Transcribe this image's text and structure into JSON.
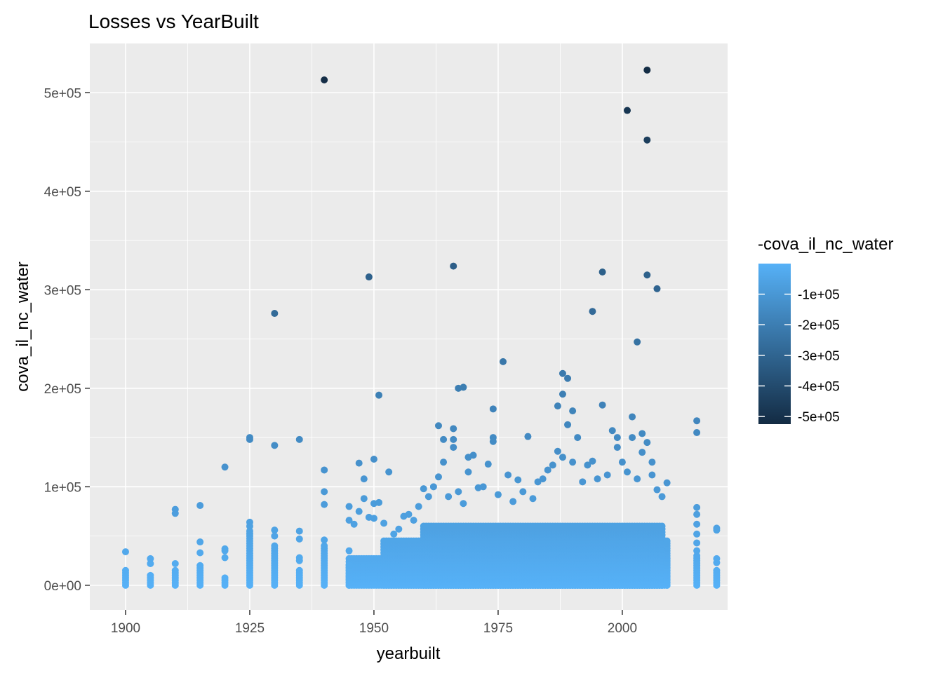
{
  "chart_data": {
    "type": "scatter",
    "title": "Losses vs YearBuilt",
    "xlabel": "yearbuilt",
    "ylabel": "cova_il_nc_water",
    "xlim": [
      1892.8,
      2021.2
    ],
    "ylim": [
      -25000,
      550000
    ],
    "xticks": [
      1900,
      1925,
      1950,
      1975,
      2000
    ],
    "xtick_labels": [
      "1900",
      "1925",
      "1950",
      "1975",
      "2000"
    ],
    "yticks": [
      0,
      100000,
      200000,
      300000,
      400000,
      500000
    ],
    "ytick_labels": [
      "0e+00",
      "1e+05",
      "2e+05",
      "3e+05",
      "4e+05",
      "5e+05"
    ],
    "grid": true,
    "legend": {
      "title": "-cova_il_nc_water",
      "position": "right",
      "range": [
        -525000,
        0
      ],
      "breaks": [
        -100000,
        -200000,
        -300000,
        -400000,
        -500000
      ],
      "labels": [
        "-1e+05",
        "-2e+05",
        "-3e+05",
        "-4e+05",
        "-5e+05"
      ],
      "color_low": "#132B43",
      "color_high": "#56B1F7"
    },
    "colors": {
      "panel_bg": "#EBEBEB",
      "grid": "#FFFFFF",
      "axis_text": "#4D4D4D"
    },
    "dense_bands": [
      {
        "x0": 1945,
        "x1": 2009,
        "y_top": 28000
      },
      {
        "x0": 1952,
        "x1": 2008,
        "y_top": 45000
      },
      {
        "x0": 1960,
        "x1": 2008,
        "y_top": 60000
      }
    ],
    "columns": [
      {
        "x": 1900,
        "ymin": 0,
        "ymax": 16000,
        "step": 2500
      },
      {
        "x": 1905,
        "ymin": 0,
        "ymax": 12000,
        "step": 2500
      },
      {
        "x": 1910,
        "ymin": 0,
        "ymax": 16000,
        "step": 2500
      },
      {
        "x": 1915,
        "ymin": 0,
        "ymax": 22000,
        "step": 2500
      },
      {
        "x": 1920,
        "ymin": 0,
        "ymax": 8000,
        "step": 2500
      },
      {
        "x": 1925,
        "ymin": 0,
        "ymax": 55000,
        "step": 2500
      },
      {
        "x": 1930,
        "ymin": 0,
        "ymax": 40000,
        "step": 2500
      },
      {
        "x": 1935,
        "ymin": 0,
        "ymax": 16000,
        "step": 2500
      },
      {
        "x": 1940,
        "ymin": 0,
        "ymax": 40000,
        "step": 2500
      },
      {
        "x": 1945,
        "ymin": 0,
        "ymax": 20000,
        "step": 2500
      },
      {
        "x": 2009,
        "ymin": 0,
        "ymax": 45000,
        "step": 2500
      },
      {
        "x": 2015,
        "ymin": 0,
        "ymax": 30000,
        "step": 2500
      },
      {
        "x": 2019,
        "ymin": 0,
        "ymax": 16000,
        "step": 2500
      }
    ],
    "points": [
      [
        1900,
        34000
      ],
      [
        1905,
        22000
      ],
      [
        1905,
        27000
      ],
      [
        1910,
        22000
      ],
      [
        1910,
        73000
      ],
      [
        1910,
        77000
      ],
      [
        1915,
        33000
      ],
      [
        1915,
        44000
      ],
      [
        1915,
        81000
      ],
      [
        1920,
        28000
      ],
      [
        1920,
        35000
      ],
      [
        1920,
        37000
      ],
      [
        1920,
        120000
      ],
      [
        1925,
        60000
      ],
      [
        1925,
        64000
      ],
      [
        1925,
        148000
      ],
      [
        1925,
        150000
      ],
      [
        1930,
        50000
      ],
      [
        1930,
        56000
      ],
      [
        1930,
        142000
      ],
      [
        1930,
        276000
      ],
      [
        1935,
        25000
      ],
      [
        1935,
        28000
      ],
      [
        1935,
        47000
      ],
      [
        1935,
        55000
      ],
      [
        1935,
        148000
      ],
      [
        1940,
        46000
      ],
      [
        1940,
        82000
      ],
      [
        1940,
        95000
      ],
      [
        1940,
        117000
      ],
      [
        1940,
        513000
      ],
      [
        1945,
        35000
      ],
      [
        1945,
        66000
      ],
      [
        1945,
        80000
      ],
      [
        1946,
        62000
      ],
      [
        1947,
        124000
      ],
      [
        1947,
        75000
      ],
      [
        1948,
        108000
      ],
      [
        1948,
        88000
      ],
      [
        1949,
        313000
      ],
      [
        1949,
        69000
      ],
      [
        1950,
        128000
      ],
      [
        1950,
        83000
      ],
      [
        1950,
        68000
      ],
      [
        1951,
        193000
      ],
      [
        1951,
        84000
      ],
      [
        1952,
        63000
      ],
      [
        1953,
        115000
      ],
      [
        1954,
        52000
      ],
      [
        1955,
        57000
      ],
      [
        1956,
        70000
      ],
      [
        1957,
        72000
      ],
      [
        1958,
        66000
      ],
      [
        1959,
        80000
      ],
      [
        1960,
        98000
      ],
      [
        1961,
        90000
      ],
      [
        1962,
        100000
      ],
      [
        1963,
        162000
      ],
      [
        1963,
        110000
      ],
      [
        1964,
        148000
      ],
      [
        1964,
        125000
      ],
      [
        1965,
        90000
      ],
      [
        1966,
        324000
      ],
      [
        1966,
        159000
      ],
      [
        1966,
        148000
      ],
      [
        1966,
        140000
      ],
      [
        1967,
        200000
      ],
      [
        1967,
        95000
      ],
      [
        1968,
        201000
      ],
      [
        1968,
        83000
      ],
      [
        1969,
        130000
      ],
      [
        1969,
        115000
      ],
      [
        1970,
        132000
      ],
      [
        1971,
        99000
      ],
      [
        1972,
        100000
      ],
      [
        1973,
        123000
      ],
      [
        1974,
        179000
      ],
      [
        1974,
        150000
      ],
      [
        1974,
        146000
      ],
      [
        1975,
        92000
      ],
      [
        1976,
        227000
      ],
      [
        1977,
        112000
      ],
      [
        1978,
        85000
      ],
      [
        1979,
        107000
      ],
      [
        1980,
        95000
      ],
      [
        1981,
        151000
      ],
      [
        1982,
        88000
      ],
      [
        1983,
        105000
      ],
      [
        1984,
        108000
      ],
      [
        1985,
        117000
      ],
      [
        1986,
        122000
      ],
      [
        1987,
        182000
      ],
      [
        1987,
        136000
      ],
      [
        1988,
        215000
      ],
      [
        1988,
        194000
      ],
      [
        1988,
        130000
      ],
      [
        1989,
        210000
      ],
      [
        1989,
        163000
      ],
      [
        1990,
        177000
      ],
      [
        1990,
        125000
      ],
      [
        1991,
        150000
      ],
      [
        1992,
        105000
      ],
      [
        1993,
        122000
      ],
      [
        1994,
        278000
      ],
      [
        1994,
        126000
      ],
      [
        1995,
        108000
      ],
      [
        1996,
        318000
      ],
      [
        1996,
        183000
      ],
      [
        1997,
        112000
      ],
      [
        1998,
        157000
      ],
      [
        1999,
        150000
      ],
      [
        1999,
        140000
      ],
      [
        2000,
        125000
      ],
      [
        2001,
        482000
      ],
      [
        2001,
        115000
      ],
      [
        2002,
        171000
      ],
      [
        2002,
        150000
      ],
      [
        2003,
        247000
      ],
      [
        2003,
        108000
      ],
      [
        2004,
        154000
      ],
      [
        2004,
        135000
      ],
      [
        2005,
        523000
      ],
      [
        2005,
        452000
      ],
      [
        2005,
        315000
      ],
      [
        2005,
        145000
      ],
      [
        2006,
        125000
      ],
      [
        2006,
        112000
      ],
      [
        2007,
        301000
      ],
      [
        2007,
        97000
      ],
      [
        2008,
        90000
      ],
      [
        2009,
        104000
      ],
      [
        2015,
        167000
      ],
      [
        2015,
        155000
      ],
      [
        2015,
        79000
      ],
      [
        2015,
        72000
      ],
      [
        2015,
        62000
      ],
      [
        2015,
        52000
      ],
      [
        2015,
        43000
      ],
      [
        2015,
        35000
      ],
      [
        2019,
        58000
      ],
      [
        2019,
        56000
      ],
      [
        2019,
        27000
      ],
      [
        2019,
        23000
      ]
    ]
  }
}
